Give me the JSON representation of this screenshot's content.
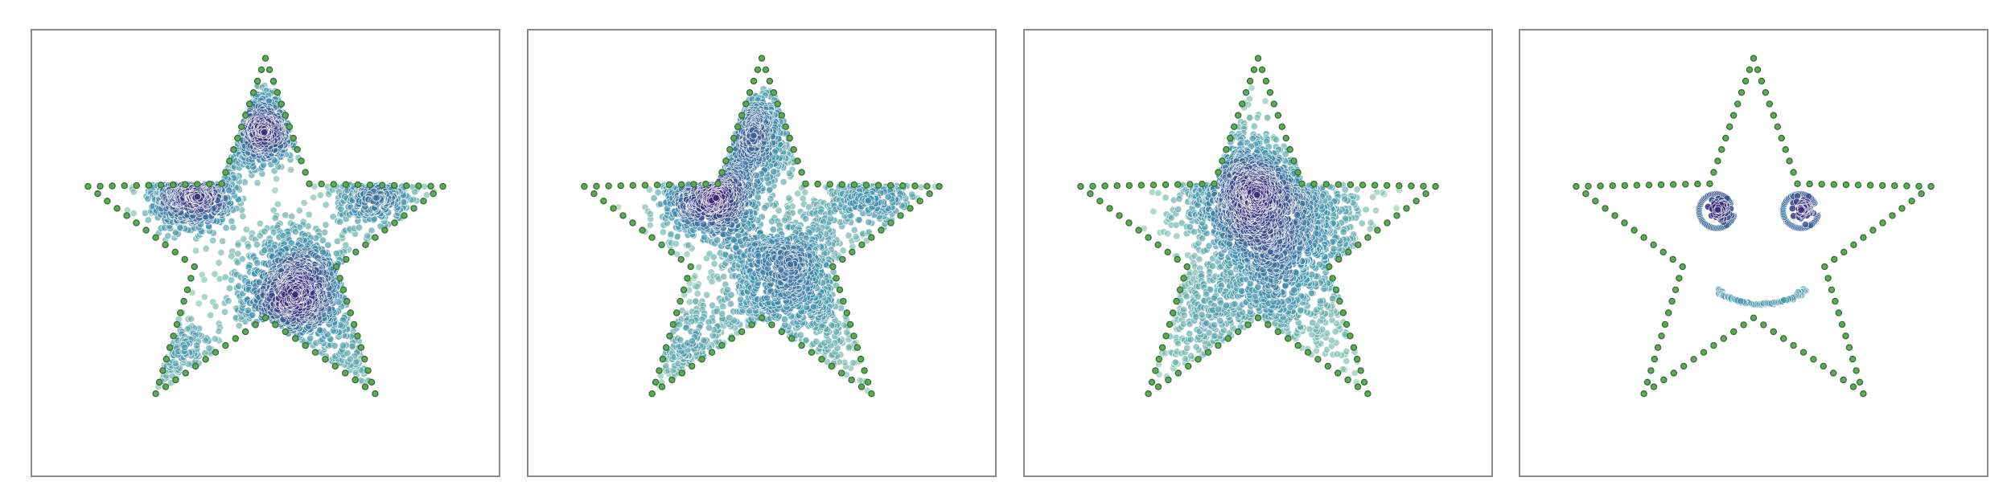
{
  "colors": {
    "outline_fill": "#5fa85a",
    "outline_edge": "#2f6b2e",
    "density_low": "#86c9a4",
    "density_mid": "#3d8fae",
    "density_high": "#3b2a7a",
    "frame": "#8a8a8a"
  },
  "chart_data": [
    {
      "type": "scatter",
      "title": "",
      "xlabel": "",
      "ylabel": "",
      "grid": false,
      "legend": "none",
      "xlim": [
        -1.25,
        1.25
      ],
      "ylim": [
        -1.25,
        1.15
      ],
      "series": [
        {
          "role": "boundary",
          "shape": "star",
          "outer_radius": 1.0,
          "inner_radius": 0.4,
          "points": 110
        },
        {
          "role": "samples",
          "count": 2600,
          "clusters": [
            {
              "x": -0.4,
              "y": 0.32,
              "sd": 0.12,
              "weight": 0.26
            },
            {
              "x": 0.17,
              "y": -0.25,
              "sd": 0.16,
              "weight": 0.28
            },
            {
              "x": 0.6,
              "y": 0.35,
              "sd": 0.13,
              "weight": 0.16
            },
            {
              "x": -0.02,
              "y": 0.62,
              "sd": 0.1,
              "weight": 0.15
            },
            {
              "x": -0.52,
              "y": -0.6,
              "sd": 0.14,
              "weight": 0.1
            },
            {
              "x": 0.52,
              "y": -0.6,
              "sd": 0.14,
              "weight": 0.05
            }
          ]
        }
      ]
    },
    {
      "type": "scatter",
      "title": "",
      "xlabel": "",
      "ylabel": "",
      "grid": false,
      "legend": "none",
      "xlim": [
        -1.25,
        1.25
      ],
      "ylim": [
        -1.25,
        1.15
      ],
      "series": [
        {
          "role": "boundary",
          "shape": "star",
          "outer_radius": 1.0,
          "inner_radius": 0.4,
          "points": 110
        },
        {
          "role": "samples",
          "count": 2600,
          "clusters": [
            {
              "x": -0.28,
              "y": 0.3,
              "sd": 0.14,
              "weight": 0.3
            },
            {
              "x": 0.12,
              "y": -0.15,
              "sd": 0.18,
              "weight": 0.26
            },
            {
              "x": 0.55,
              "y": 0.32,
              "sd": 0.16,
              "weight": 0.14
            },
            {
              "x": -0.02,
              "y": 0.62,
              "sd": 0.12,
              "weight": 0.14
            },
            {
              "x": -0.4,
              "y": -0.55,
              "sd": 0.17,
              "weight": 0.1
            },
            {
              "x": 0.45,
              "y": -0.55,
              "sd": 0.16,
              "weight": 0.06
            }
          ]
        }
      ]
    },
    {
      "type": "scatter",
      "title": "",
      "xlabel": "",
      "ylabel": "",
      "grid": false,
      "legend": "none",
      "xlim": [
        -1.25,
        1.25
      ],
      "ylim": [
        -1.25,
        1.15
      ],
      "series": [
        {
          "role": "boundary",
          "shape": "star",
          "outer_radius": 1.0,
          "inner_radius": 0.4,
          "points": 110
        },
        {
          "role": "samples",
          "count": 2600,
          "clusters": [
            {
              "x": -0.08,
              "y": 0.28,
              "sd": 0.18,
              "weight": 0.4
            },
            {
              "x": 0.22,
              "y": 0.12,
              "sd": 0.22,
              "weight": 0.26
            },
            {
              "x": 0.02,
              "y": -0.2,
              "sd": 0.24,
              "weight": 0.18
            },
            {
              "x": -0.3,
              "y": -0.45,
              "sd": 0.2,
              "weight": 0.1
            },
            {
              "x": 0.35,
              "y": -0.5,
              "sd": 0.2,
              "weight": 0.06
            }
          ]
        }
      ]
    },
    {
      "type": "scatter",
      "title": "",
      "xlabel": "",
      "ylabel": "",
      "grid": false,
      "legend": "none",
      "xlim": [
        -1.25,
        1.25
      ],
      "ylim": [
        -1.25,
        1.15
      ],
      "series": [
        {
          "role": "boundary",
          "shape": "star",
          "outer_radius": 1.0,
          "inner_radius": 0.4,
          "points": 110
        },
        {
          "role": "samples",
          "count": 260,
          "features": [
            {
              "feature": "left-eye",
              "x": -0.2,
              "y": 0.18,
              "radius": 0.09
            },
            {
              "feature": "right-eye",
              "x": 0.25,
              "y": 0.18,
              "radius": 0.09
            },
            {
              "feature": "smile",
              "x": 0.04,
              "y": -0.25,
              "radius": 0.25
            }
          ]
        }
      ]
    }
  ]
}
